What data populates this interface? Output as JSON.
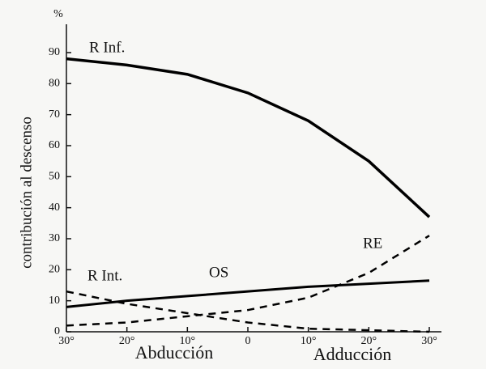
{
  "chart_data": {
    "type": "line",
    "y_label": "contribución al descenso",
    "y_unit": "%",
    "x_group_labels": [
      "Abducción",
      "Adducción"
    ],
    "x": [
      -30,
      -20,
      -10,
      0,
      10,
      20,
      30
    ],
    "series": [
      {
        "name": "R Inf.",
        "color": "#000000",
        "dashed": false,
        "values": [
          88,
          86,
          83,
          77,
          68,
          55,
          37
        ]
      },
      {
        "name": "OS",
        "color": "#000000",
        "dashed": false,
        "values": [
          8,
          10,
          11.5,
          13,
          14.5,
          15.5,
          16.5
        ]
      },
      {
        "name": "RE",
        "color": "#000000",
        "dashed": true,
        "values": [
          2,
          3,
          5,
          7,
          11,
          19,
          31
        ]
      },
      {
        "name": "R Int.",
        "color": "#000000",
        "dashed": true,
        "values": [
          13,
          9,
          6,
          3,
          1,
          0.5,
          0
        ]
      }
    ],
    "xlim": [
      -30,
      30
    ],
    "xticks": [
      {
        "value": -30,
        "label": "30°"
      },
      {
        "value": -20,
        "label": "20°"
      },
      {
        "value": -10,
        "label": "10°"
      },
      {
        "value": 0,
        "label": "0"
      },
      {
        "value": 10,
        "label": "10°"
      },
      {
        "value": 20,
        "label": "20°"
      },
      {
        "value": 30,
        "label": "30°"
      }
    ],
    "ylim": [
      0,
      90
    ],
    "yticks": [
      0,
      10,
      20,
      30,
      40,
      50,
      60,
      70,
      80,
      90
    ]
  }
}
